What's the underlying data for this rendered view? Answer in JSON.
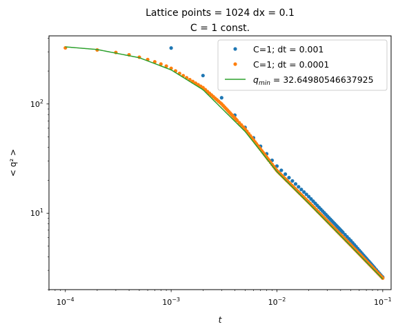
{
  "chart_data": {
    "type": "scatter",
    "title_line1": "Lattice points = 1024 dx = 0.1",
    "title_line2": "C = 1 const.",
    "xlabel": "t",
    "ylabel": "< q² >",
    "x_scale": "log",
    "y_scale": "log",
    "xlim": [
      7e-05,
      0.12
    ],
    "ylim": [
      2.0,
      420
    ],
    "grid": false,
    "legend_position": "upper right",
    "x_ticks": [
      {
        "value": 0.0001,
        "base": "10",
        "exp": "−4"
      },
      {
        "value": 0.001,
        "base": "10",
        "exp": "−3"
      },
      {
        "value": 0.01,
        "base": "10",
        "exp": "−2"
      },
      {
        "value": 0.1,
        "base": "10",
        "exp": "−1"
      }
    ],
    "y_ticks": [
      {
        "value": 10,
        "base": "10",
        "exp": "1"
      },
      {
        "value": 100,
        "base": "10",
        "exp": "2"
      }
    ],
    "series": [
      {
        "name": "C=1; dt = 0.001",
        "style": "markers",
        "color": "#1f77b4",
        "t_start": 0.001,
        "t_step": 0.001,
        "count": 100,
        "points": [
          [
            0.001,
            325
          ],
          [
            0.002,
            182
          ],
          [
            0.003,
            114
          ],
          [
            0.004,
            79
          ],
          [
            0.005,
            61
          ],
          [
            0.006,
            49
          ],
          [
            0.007,
            41
          ],
          [
            0.008,
            35
          ],
          [
            0.009,
            30.5
          ],
          [
            0.01,
            27
          ],
          [
            0.02,
            14.2
          ],
          [
            0.05,
            5.6
          ],
          [
            0.1,
            2.6
          ]
        ]
      },
      {
        "name": "C=1; dt = 0.0001",
        "style": "markers",
        "color": "#ff7f0e",
        "t_start": 0.0001,
        "t_step": 0.0001,
        "count": 1000,
        "points": [
          [
            0.0001,
            326
          ],
          [
            0.0002,
            312
          ],
          [
            0.0003,
            296
          ],
          [
            0.0004,
            282
          ],
          [
            0.0005,
            268
          ],
          [
            0.0006,
            255
          ],
          [
            0.0007,
            243
          ],
          [
            0.0008,
            232
          ],
          [
            0.0009,
            222
          ],
          [
            0.001,
            212
          ],
          [
            0.002,
            141
          ],
          [
            0.003,
            100
          ],
          [
            0.005,
            59
          ],
          [
            0.01,
            24.5
          ],
          [
            0.02,
            12.6
          ],
          [
            0.05,
            5.1
          ],
          [
            0.1,
            2.55
          ]
        ]
      },
      {
        "name_prefix": "q",
        "name_sub": "min",
        "name_suffix": " = 32.64980546637925",
        "style": "line",
        "color": "#2ca02c",
        "q_min": 32.64980546637925,
        "points": [
          [
            0.0001,
            333
          ],
          [
            0.0002,
            315
          ],
          [
            0.0005,
            265
          ],
          [
            0.001,
            205
          ],
          [
            0.002,
            135
          ],
          [
            0.005,
            56
          ],
          [
            0.01,
            24
          ],
          [
            0.02,
            12.3
          ],
          [
            0.05,
            5.0
          ],
          [
            0.1,
            2.5
          ]
        ]
      }
    ]
  }
}
